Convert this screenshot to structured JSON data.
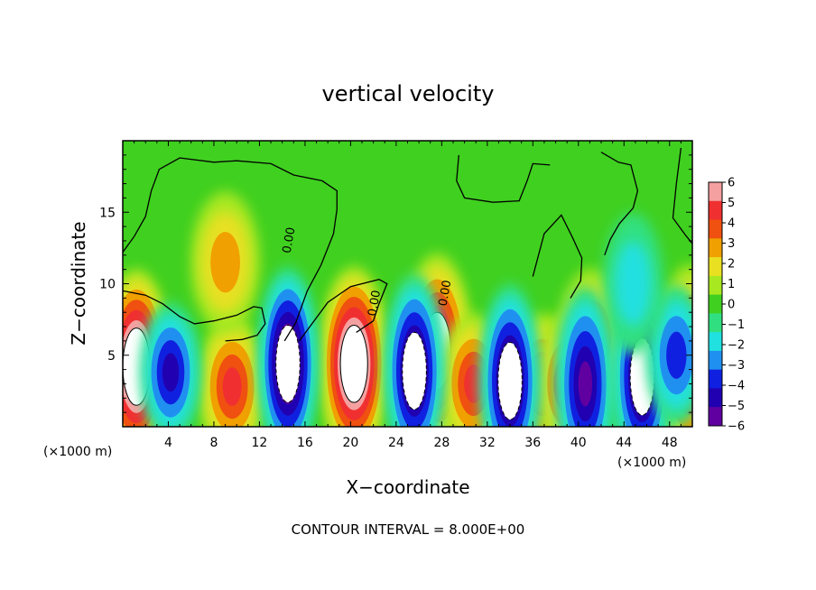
{
  "chart_data": {
    "type": "heatmap",
    "title": "vertical velocity",
    "xlabel": "X−coordinate",
    "ylabel": "Z−coordinate",
    "x_unit": "(×1000 m)",
    "y_unit": "(×1000 m)",
    "xlim": [
      0,
      50
    ],
    "ylim": [
      0,
      20
    ],
    "x_ticks": [
      4,
      8,
      12,
      16,
      20,
      24,
      28,
      32,
      36,
      40,
      44,
      48
    ],
    "y_ticks": [
      5,
      10,
      15
    ],
    "x_tick_labels": [
      "4",
      "8",
      "12",
      "16",
      "20",
      "24",
      "28",
      "32",
      "36",
      "40",
      "44",
      "48"
    ],
    "y_tick_labels": [
      "5",
      "10",
      "15"
    ],
    "colorbar": {
      "levels": [
        6,
        5,
        4,
        3,
        2,
        1,
        0,
        -1,
        -2,
        -3,
        -4,
        -5,
        -6
      ],
      "labels": [
        "6",
        "5",
        "4",
        "3",
        "2",
        "1",
        "0",
        "−1",
        "−2",
        "−3",
        "−4",
        "−5",
        "−6"
      ],
      "colors": [
        "#f5a0a0",
        "#f03030",
        "#f05010",
        "#f0a000",
        "#e8e020",
        "#a8e820",
        "#40d020",
        "#30e080",
        "#20e0e0",
        "#2090f0",
        "#1020e0",
        "#2000b0",
        "#6000a0"
      ]
    },
    "contour_labels": [
      "0.00",
      "0.00",
      "0.00"
    ],
    "contour_interval_text": "CONTOUR INTERVAL = 8.000E+00",
    "background_value": 0,
    "features": [
      {
        "x": 1.2,
        "z": 4.2,
        "w": 8.5,
        "kind": "updraft"
      },
      {
        "x": 9.6,
        "z": 2.8,
        "w": 5.0,
        "kind": "updraft"
      },
      {
        "x": 20.3,
        "z": 4.4,
        "w": 9.0,
        "kind": "updraft"
      },
      {
        "x": 27.6,
        "z": 5.3,
        "w": 6.5,
        "kind": "updraft"
      },
      {
        "x": 30.8,
        "z": 3.0,
        "w": 4.5,
        "kind": "updraft"
      },
      {
        "x": 36.8,
        "z": 3.0,
        "w": 4.5,
        "kind": "updraft"
      },
      {
        "x": 39.2,
        "z": 3.0,
        "w": 4.5,
        "kind": "updraft"
      },
      {
        "x": 41.2,
        "z": 6.1,
        "w": 4.0,
        "kind": "updraft"
      },
      {
        "x": 49.8,
        "z": 4.5,
        "w": 5.5,
        "kind": "updraft"
      },
      {
        "x": 9.0,
        "z": 11.5,
        "w": 2.8,
        "kind": "updraft"
      },
      {
        "x": 4.2,
        "z": 3.8,
        "w": -4.5,
        "kind": "downdraft"
      },
      {
        "x": 14.5,
        "z": 4.4,
        "w": -7.5,
        "kind": "downdraft"
      },
      {
        "x": 25.6,
        "z": 3.9,
        "w": -6.5,
        "kind": "downdraft"
      },
      {
        "x": 34.0,
        "z": 3.2,
        "w": -6.5,
        "kind": "downdraft"
      },
      {
        "x": 40.6,
        "z": 3.0,
        "w": -6.0,
        "kind": "downdraft"
      },
      {
        "x": 45.6,
        "z": 3.5,
        "w": -6.5,
        "kind": "downdraft"
      },
      {
        "x": 48.6,
        "z": 5.0,
        "w": -3.5,
        "kind": "downdraft"
      },
      {
        "x": 44.8,
        "z": 10.0,
        "w": -2.0,
        "kind": "downdraft"
      }
    ]
  }
}
